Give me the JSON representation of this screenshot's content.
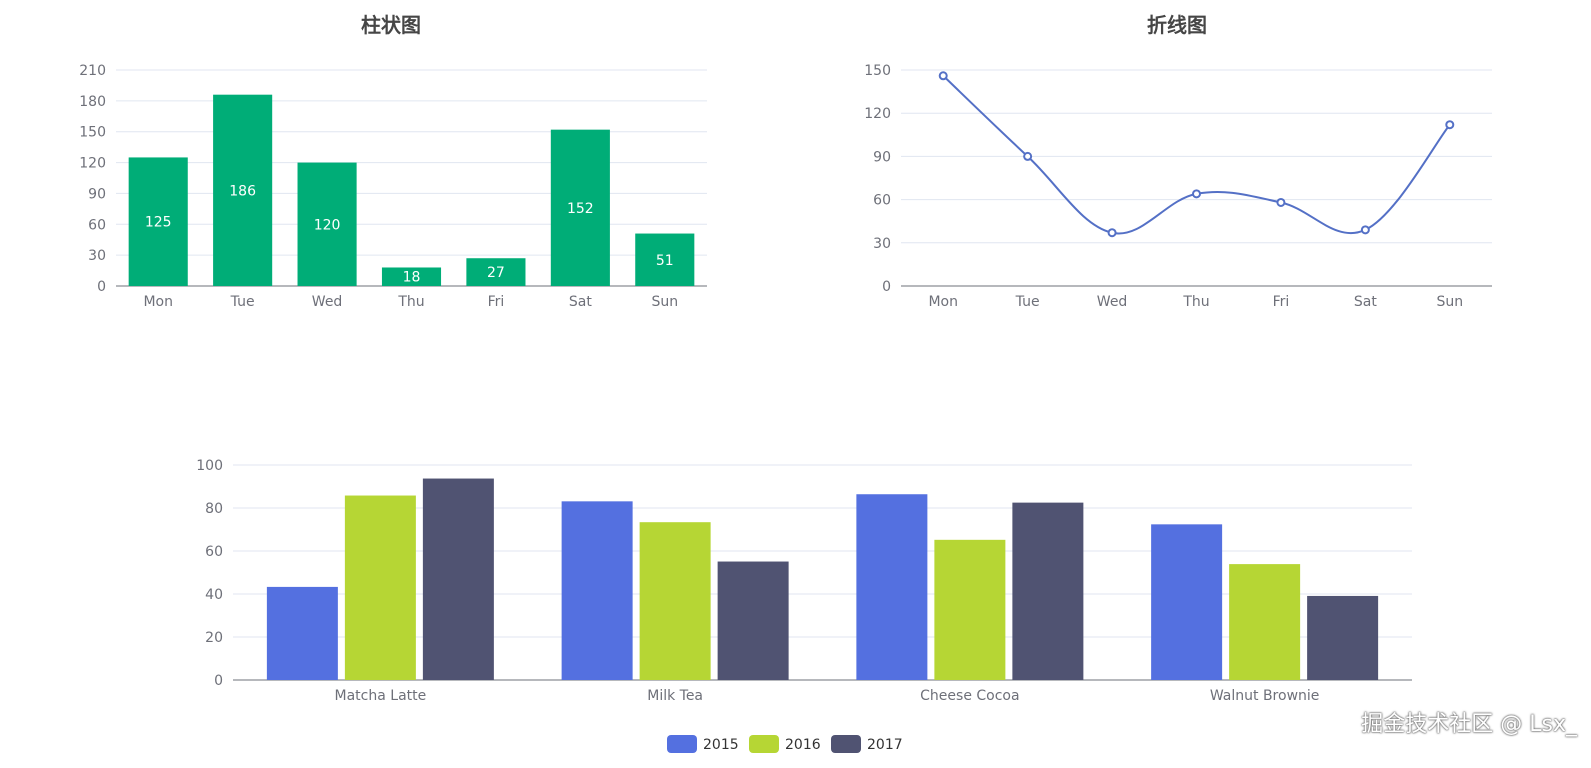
{
  "chart_data": [
    {
      "type": "bar",
      "title": "柱状图",
      "categories": [
        "Mon",
        "Tue",
        "Wed",
        "Thu",
        "Fri",
        "Sat",
        "Sun"
      ],
      "values": [
        125,
        186,
        120,
        18,
        27,
        152,
        51
      ],
      "ylim": [
        0,
        210
      ],
      "yticks": [
        0,
        30,
        60,
        90,
        120,
        150,
        180,
        210
      ],
      "color": "#00ad77",
      "label_color": "#ffffff",
      "grid": true
    },
    {
      "type": "line",
      "title": "折线图",
      "categories": [
        "Mon",
        "Tue",
        "Wed",
        "Thu",
        "Fri",
        "Sat",
        "Sun"
      ],
      "values": [
        146,
        90,
        37,
        64,
        58,
        39,
        112
      ],
      "ylim": [
        0,
        150
      ],
      "yticks": [
        0,
        30,
        60,
        90,
        120,
        150
      ],
      "color": "#5470c6",
      "smooth": true,
      "grid": true
    },
    {
      "type": "bar",
      "title": "",
      "categories": [
        "Matcha Latte",
        "Milk Tea",
        "Cheese Cocoa",
        "Walnut Brownie"
      ],
      "series": [
        {
          "name": "2015",
          "values": [
            43.3,
            83.1,
            86.4,
            72.4
          ],
          "color": "#5470e0"
        },
        {
          "name": "2016",
          "values": [
            85.8,
            73.4,
            65.2,
            53.9
          ],
          "color": "#b6d634"
        },
        {
          "name": "2017",
          "values": [
            93.7,
            55.1,
            82.5,
            39.1
          ],
          "color": "#505372"
        }
      ],
      "ylim": [
        0,
        100
      ],
      "yticks": [
        0,
        20,
        40,
        60,
        80,
        100
      ],
      "legend": "bottom-center",
      "grid": true
    }
  ],
  "watermark": "掘金技术社区 @ Lsx_"
}
